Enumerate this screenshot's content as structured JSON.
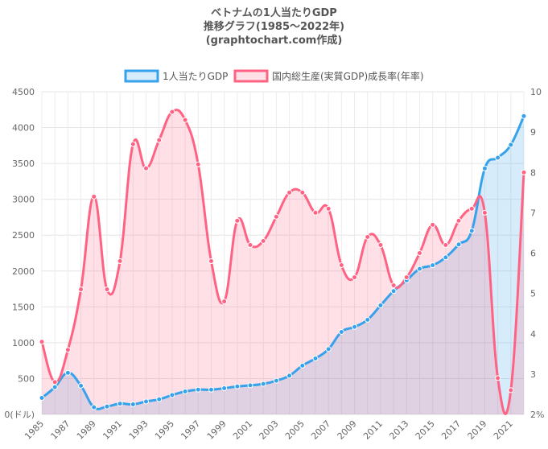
{
  "chart_data": {
    "type": "line",
    "title_lines": [
      "ベトナムの1人当たりGDP",
      "推移グラフ(1985〜2022年)",
      "(graphtochart.com作成)"
    ],
    "x": [
      1985,
      1986,
      1987,
      1988,
      1989,
      1990,
      1991,
      1992,
      1993,
      1994,
      1995,
      1996,
      1997,
      1998,
      1999,
      2000,
      2001,
      2002,
      2003,
      2004,
      2005,
      2006,
      2007,
      2008,
      2009,
      2010,
      2011,
      2012,
      2013,
      2014,
      2015,
      2016,
      2017,
      2018,
      2019,
      2020,
      2021,
      2022
    ],
    "x_tick_labels": [
      "1985",
      "1987",
      "1989",
      "1991",
      "1993",
      "1995",
      "1997",
      "1999",
      "2001",
      "2003",
      "2005",
      "2007",
      "2009",
      "2011",
      "2013",
      "2015",
      "2017",
      "2019",
      "2021"
    ],
    "series": [
      {
        "name": "1人当たりGDP",
        "axis": "left",
        "color": "#36a2eb",
        "fill": "rgba(54,162,235,0.2)",
        "values": [
          230,
          380,
          580,
          400,
          100,
          110,
          150,
          140,
          180,
          210,
          270,
          320,
          345,
          345,
          365,
          390,
          405,
          425,
          470,
          540,
          680,
          780,
          910,
          1150,
          1220,
          1320,
          1520,
          1720,
          1870,
          2030,
          2080,
          2190,
          2370,
          2560,
          3430,
          3580,
          3760,
          4160
        ]
      },
      {
        "name": "国内総生産(実質GDP)成長率(年率)",
        "axis": "right",
        "color": "#ff6384",
        "fill": "rgba(255,99,132,0.2)",
        "values": [
          3.8,
          2.8,
          3.6,
          5.1,
          7.4,
          5.1,
          5.8,
          8.7,
          8.1,
          8.8,
          9.5,
          9.3,
          8.2,
          5.8,
          4.8,
          6.8,
          6.2,
          6.3,
          6.9,
          7.5,
          7.5,
          7.0,
          7.1,
          5.7,
          5.4,
          6.4,
          6.2,
          5.2,
          5.4,
          6.0,
          6.7,
          6.2,
          6.8,
          7.1,
          7.0,
          2.9,
          2.6,
          8.0
        ]
      }
    ],
    "y_left": {
      "min": 0,
      "max": 4500,
      "ticks": [
        "4500",
        "4000",
        "3500",
        "3000",
        "2500",
        "2000",
        "1500",
        "1000",
        "500",
        "0(ドル)"
      ]
    },
    "y_right": {
      "min": 2,
      "max": 10,
      "ticks": [
        "10",
        "9",
        "8",
        "7",
        "6",
        "5",
        "4",
        "3",
        "2%"
      ]
    },
    "legend_position": "top",
    "grid": true
  }
}
